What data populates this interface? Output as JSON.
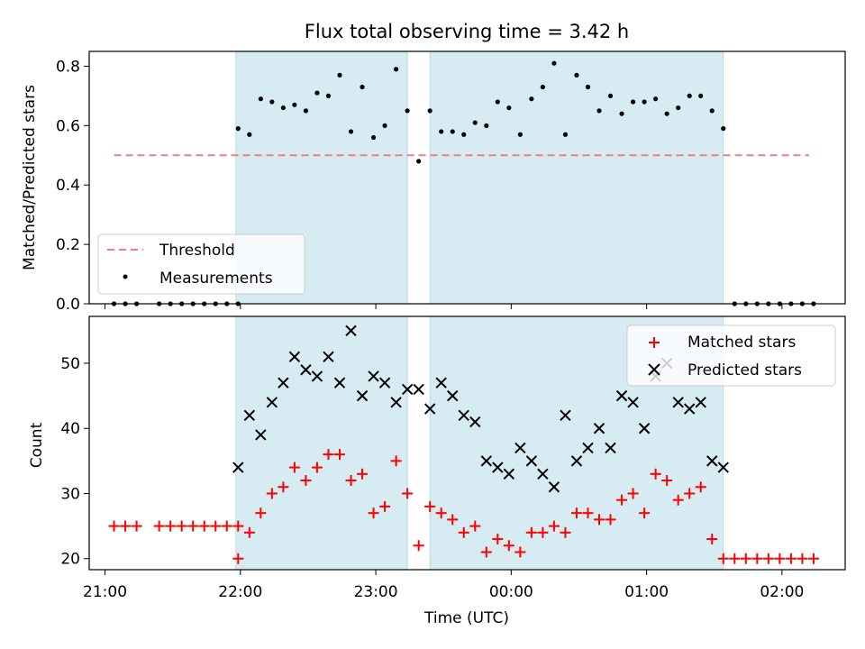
{
  "chart_data": [
    {
      "type": "scatter",
      "title": "Flux total observing time = 3.42 h",
      "xlabel": "",
      "ylabel": "Matched/Predicted stars",
      "ylim": [
        0,
        0.85
      ],
      "yticks": [
        "0.0",
        "0.2",
        "0.4",
        "0.6",
        "0.8"
      ],
      "ytick_values": [
        0,
        0.2,
        0.4,
        0.6,
        0.8
      ],
      "xlim": [
        "20:53",
        "02:28"
      ],
      "legend_position": "lower-left",
      "shaded_intervals": [
        [
          "21:58",
          "23:14"
        ],
        [
          "23:24",
          "01:34"
        ]
      ],
      "shade_color": "#add8e6",
      "series": [
        {
          "name": "Threshold",
          "style": "dashed-line",
          "color": "#f08080",
          "x": [
            "21:04",
            "02:12"
          ],
          "y": [
            0.5,
            0.5
          ]
        },
        {
          "name": "Measurements",
          "style": "dot",
          "color": "#000000",
          "x": [
            "21:04",
            "21:09",
            "21:14",
            "21:24",
            "21:29",
            "21:34",
            "21:39",
            "21:44",
            "21:49",
            "21:54",
            "21:59",
            "21:59",
            "22:04",
            "22:09",
            "22:14",
            "22:19",
            "22:24",
            "22:29",
            "22:34",
            "22:39",
            "22:44",
            "22:49",
            "22:54",
            "22:59",
            "23:04",
            "23:09",
            "23:14",
            "23:19",
            "23:24",
            "23:29",
            "23:34",
            "23:39",
            "23:44",
            "23:49",
            "23:54",
            "23:59",
            "00:04",
            "00:09",
            "00:14",
            "00:19",
            "00:24",
            "00:29",
            "00:34",
            "00:39",
            "00:44",
            "00:49",
            "00:54",
            "00:59",
            "01:04",
            "01:09",
            "01:14",
            "01:19",
            "01:24",
            "01:29",
            "01:34",
            "01:39",
            "01:44",
            "01:49",
            "01:54",
            "01:59",
            "02:04",
            "02:09",
            "02:14"
          ],
          "y": [
            0,
            0,
            0,
            0,
            0,
            0,
            0,
            0,
            0,
            0,
            0,
            0.59,
            0.57,
            0.69,
            0.68,
            0.66,
            0.67,
            0.65,
            0.71,
            0.7,
            0.77,
            0.58,
            0.73,
            0.56,
            0.6,
            0.79,
            0.65,
            0.48,
            0.65,
            0.58,
            0.58,
            0.57,
            0.61,
            0.6,
            0.68,
            0.66,
            0.57,
            0.69,
            0.73,
            0.81,
            0.57,
            0.77,
            0.73,
            0.65,
            0.7,
            0.64,
            0.68,
            0.68,
            0.69,
            0.64,
            0.66,
            0.7,
            0.7,
            0.65,
            0.59,
            0,
            0,
            0,
            0,
            0,
            0,
            0,
            0
          ]
        }
      ]
    },
    {
      "type": "scatter",
      "title": "",
      "xlabel": "Time (UTC)",
      "ylabel": "Count",
      "ylim": [
        18.3,
        57.2
      ],
      "yticks": [
        "20",
        "30",
        "40",
        "50"
      ],
      "ytick_values": [
        20,
        30,
        40,
        50
      ],
      "xlim": [
        "20:53",
        "02:28"
      ],
      "xticks": [
        "21:00",
        "22:00",
        "23:00",
        "00:00",
        "01:00",
        "02:00"
      ],
      "legend_position": "upper-right",
      "shaded_intervals": [
        [
          "21:58",
          "23:14"
        ],
        [
          "23:24",
          "01:34"
        ]
      ],
      "shade_color": "#add8e6",
      "series": [
        {
          "name": "Matched stars",
          "style": "plus",
          "color": "#ff0000",
          "x": [
            "21:04",
            "21:09",
            "21:14",
            "21:24",
            "21:29",
            "21:34",
            "21:39",
            "21:44",
            "21:49",
            "21:54",
            "21:59",
            "21:59",
            "22:04",
            "22:09",
            "22:14",
            "22:19",
            "22:24",
            "22:29",
            "22:34",
            "22:39",
            "22:44",
            "22:49",
            "22:54",
            "22:59",
            "23:04",
            "23:09",
            "23:14",
            "23:19",
            "23:24",
            "23:29",
            "23:34",
            "23:39",
            "23:44",
            "23:49",
            "23:54",
            "23:59",
            "00:04",
            "00:09",
            "00:14",
            "00:19",
            "00:24",
            "00:29",
            "00:34",
            "00:39",
            "00:44",
            "00:49",
            "00:54",
            "00:59",
            "01:04",
            "01:09",
            "01:14",
            "01:19",
            "01:24",
            "01:29",
            "01:34",
            "01:39",
            "01:44",
            "01:49",
            "01:54",
            "01:59",
            "02:04",
            "02:09",
            "02:14"
          ],
          "y": [
            25,
            25,
            25,
            25,
            25,
            25,
            25,
            25,
            25,
            25,
            25,
            20,
            24,
            27,
            30,
            31,
            34,
            32,
            34,
            36,
            36,
            32,
            33,
            27,
            28,
            35,
            30,
            22,
            28,
            27,
            26,
            24,
            25,
            21,
            23,
            22,
            21,
            24,
            24,
            25,
            24,
            27,
            27,
            26,
            26,
            29,
            30,
            27,
            33,
            32,
            29,
            30,
            31,
            23,
            20,
            20,
            20,
            20,
            20,
            20,
            20,
            20,
            20
          ]
        },
        {
          "name": "Predicted stars",
          "style": "x",
          "color": "#000000",
          "x": [
            "21:59",
            "22:04",
            "22:09",
            "22:14",
            "22:19",
            "22:24",
            "22:29",
            "22:34",
            "22:39",
            "22:44",
            "22:49",
            "22:54",
            "22:59",
            "23:04",
            "23:09",
            "23:14",
            "23:19",
            "23:24",
            "23:29",
            "23:34",
            "23:39",
            "23:44",
            "23:49",
            "23:54",
            "23:59",
            "00:04",
            "00:09",
            "00:14",
            "00:19",
            "00:24",
            "00:29",
            "00:34",
            "00:39",
            "00:44",
            "00:49",
            "00:54",
            "00:59",
            "01:04",
            "01:09",
            "01:14",
            "01:19",
            "01:24",
            "01:29",
            "01:34"
          ],
          "y": [
            34,
            42,
            39,
            44,
            47,
            51,
            49,
            48,
            51,
            47,
            55,
            45,
            48,
            47,
            44,
            46,
            46,
            43,
            47,
            45,
            42,
            41,
            35,
            34,
            33,
            37,
            35,
            33,
            31,
            42,
            35,
            37,
            40,
            37,
            45,
            44,
            40,
            48,
            50,
            44,
            43,
            44,
            35,
            34
          ]
        }
      ]
    }
  ]
}
